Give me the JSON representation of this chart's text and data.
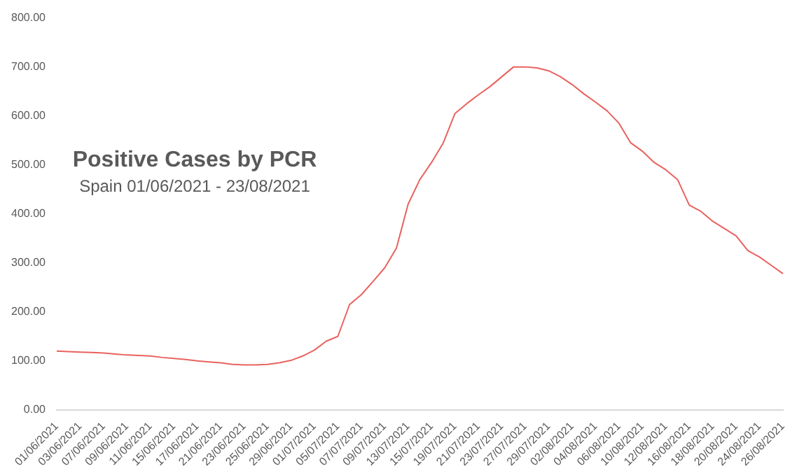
{
  "chart_data": {
    "type": "line",
    "title": "Positive Cases by PCR",
    "subtitle": "Spain 01/06/2021 - 23/08/2021",
    "categories": [
      "01/06/2021",
      null,
      "03/06/2021",
      null,
      "07/06/2021",
      null,
      "09/06/2021",
      null,
      "11/06/2021",
      null,
      "15/06/2021",
      null,
      "17/06/2021",
      null,
      "21/06/2021",
      null,
      "23/06/2021",
      null,
      "25/06/2021",
      null,
      "29/06/2021",
      null,
      "01/07/2021",
      null,
      "05/07/2021",
      null,
      "07/07/2021",
      null,
      "09/07/2021",
      null,
      "13/07/2021",
      null,
      "15/07/2021",
      null,
      "19/07/2021",
      null,
      "21/07/2021",
      null,
      "23/07/2021",
      null,
      "27/07/2021",
      null,
      "29/07/2021",
      null,
      "02/08/2021",
      null,
      "04/08/2021",
      null,
      "06/08/2021",
      null,
      "10/08/2021",
      null,
      "12/08/2021",
      null,
      "16/08/2021",
      null,
      "18/08/2021",
      null,
      "20/08/2021",
      null,
      "24/08/2021",
      null,
      "26/08/2021"
    ],
    "series": [
      {
        "color": "#e9625e",
        "values": [
          120,
          119,
          118,
          117,
          116,
          114,
          112,
          111,
          110,
          107,
          105,
          103,
          100,
          98,
          96,
          93,
          92,
          92,
          93,
          96,
          101,
          110,
          122,
          140,
          150,
          215,
          235,
          262,
          290,
          330,
          420,
          470,
          505,
          545,
          605,
          625,
          643,
          660,
          680,
          700,
          700,
          698,
          692,
          680,
          664,
          645,
          628,
          610,
          585,
          545,
          528,
          505,
          490,
          470,
          418,
          405,
          385,
          370,
          355,
          325,
          312,
          295,
          278
        ]
      }
    ],
    "ylim": [
      0,
      800
    ],
    "yticks": [
      {
        "value": 0,
        "label": "0.00"
      },
      {
        "value": 100,
        "label": "100.00"
      },
      {
        "value": 200,
        "label": "200.00"
      },
      {
        "value": 300,
        "label": "300.00"
      },
      {
        "value": 400,
        "label": "400.00"
      },
      {
        "value": 500,
        "label": "500.00"
      },
      {
        "value": 600,
        "label": "600.00"
      },
      {
        "value": 700,
        "label": "700.00"
      },
      {
        "value": 800,
        "label": "800.00"
      }
    ],
    "grid": false,
    "legend": false,
    "marker": "none",
    "line_style": "solid"
  }
}
